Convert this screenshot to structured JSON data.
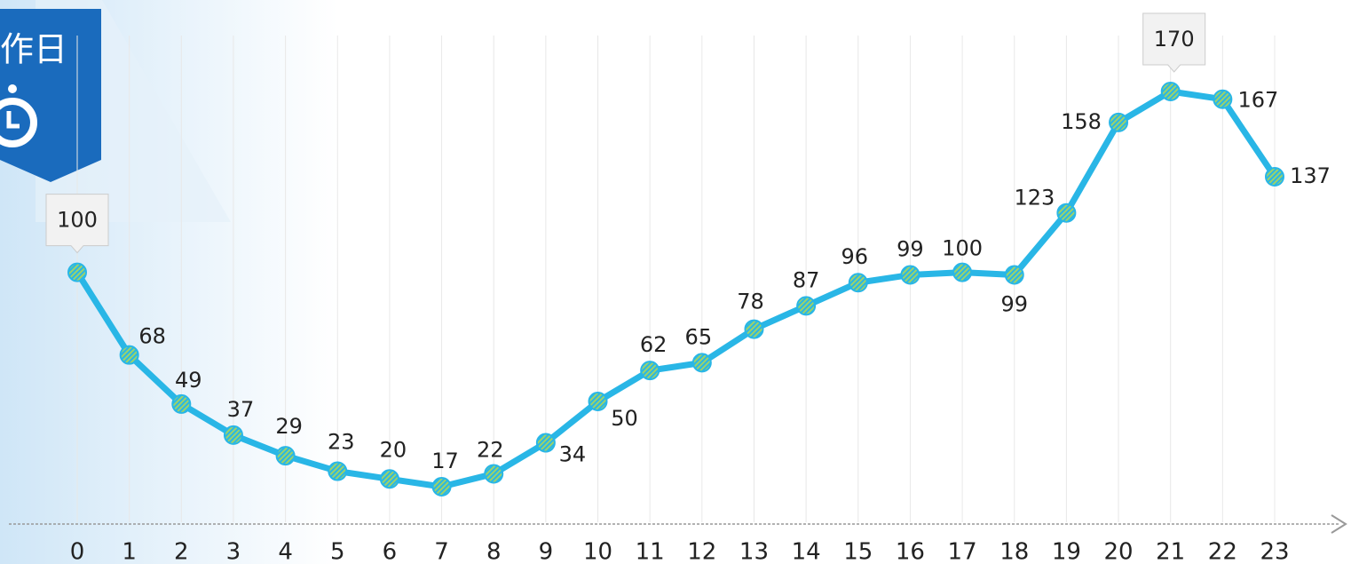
{
  "badge": "作日",
  "chart_data": {
    "type": "line",
    "categories": [
      "0",
      "1",
      "2",
      "3",
      "4",
      "5",
      "6",
      "7",
      "8",
      "9",
      "10",
      "11",
      "12",
      "13",
      "14",
      "15",
      "16",
      "17",
      "18",
      "19",
      "20",
      "21",
      "22",
      "23"
    ],
    "series": [
      {
        "name": null,
        "color": "#29b6e6",
        "values": [
          100,
          68,
          49,
          37,
          29,
          23,
          20,
          17,
          22,
          34,
          50,
          62,
          65,
          78,
          87,
          96,
          99,
          100,
          99,
          123,
          158,
          170,
          167,
          137
        ]
      }
    ],
    "grid": true
  }
}
